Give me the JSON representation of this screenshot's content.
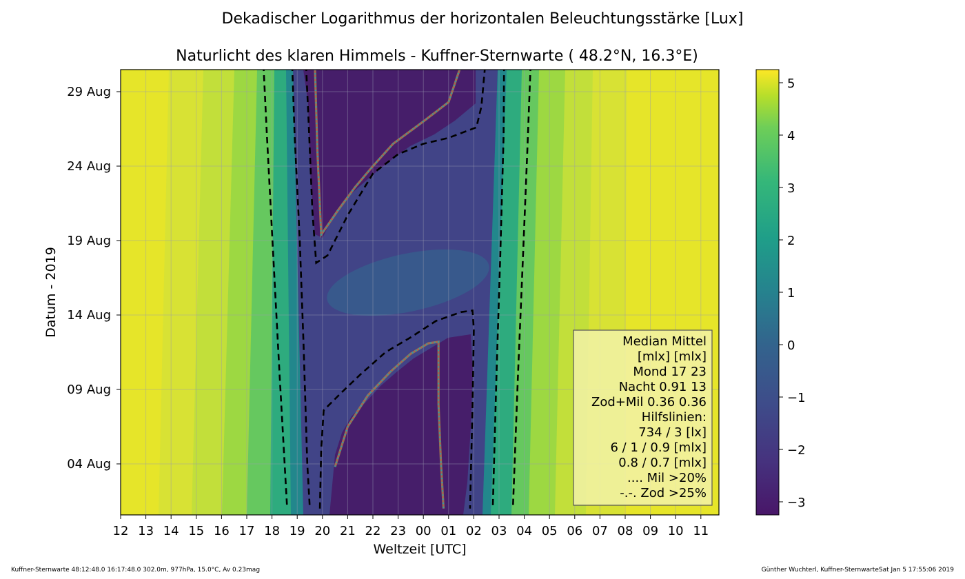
{
  "chart_data": {
    "type": "heatmap",
    "title": "Dekadischer Logarithmus der horizontalen Beleuchtungsstärke [Lux]",
    "subtitle": "Naturlicht des klaren Himmels - Kuffner-Sternwarte ( 48.2°N, 16.3°E)",
    "xlabel": "Weltzeit [UTC]",
    "ylabel": "Datum - 2019",
    "x_ticks": [
      "12",
      "13",
      "14",
      "15",
      "16",
      "17",
      "18",
      "19",
      "20",
      "21",
      "22",
      "23",
      "00",
      "01",
      "02",
      "03",
      "04",
      "05",
      "06",
      "07",
      "08",
      "09",
      "10",
      "11"
    ],
    "y_ticks": [
      "29 Aug",
      "24 Aug",
      "19 Aug",
      "14 Aug",
      "09 Aug",
      "04 Aug"
    ],
    "colorbar_ticks": [
      "5",
      "4",
      "3",
      "2",
      "1",
      "0",
      "−1",
      "−2",
      "−3"
    ],
    "colorbar_range": [
      -3.25,
      5.25
    ],
    "grid": true,
    "legend_position": "lower-right",
    "legend_lines": [
      "Median Mittel",
      "[mlx]  [mlx]",
      "Mond   17  23",
      "Nacht 0.91  13",
      "Zod+Mil 0.36  0.36",
      "Hilfslinien:",
      "734 / 3  [lx]",
      "6 /  1 / 0.9 [mlx]",
      "0.8 / 0.7 [mlx]",
      ".... Mil >20%",
      "-.-. Zod >25%"
    ],
    "contour_lines": [
      {
        "style": "dashed",
        "points": [
          [
            "17.66",
            "30.8"
          ],
          [
            "17.8",
            "26"
          ],
          [
            "18.05",
            "18"
          ],
          [
            "18.3",
            "10"
          ],
          [
            "18.6",
            "1"
          ]
        ]
      },
      {
        "style": "dashed",
        "points": [
          [
            "18.8",
            "30.8"
          ],
          [
            "18.9",
            "26"
          ],
          [
            "19.1",
            "19"
          ],
          [
            "19.25",
            "12"
          ],
          [
            "19.4",
            "4"
          ],
          [
            "19.5",
            "1"
          ]
        ]
      },
      {
        "style": "dashed",
        "points": [
          [
            "27.2",
            "30.8"
          ],
          [
            "27.18",
            "26"
          ],
          [
            "27.05",
            "18"
          ],
          [
            "26.9",
            "10"
          ],
          [
            "26.75",
            "1"
          ]
        ]
      },
      {
        "style": "dashed",
        "points": [
          [
            "28.25",
            "30.8"
          ],
          [
            "28.12",
            "25"
          ],
          [
            "27.95",
            "18"
          ],
          [
            "27.75",
            "10"
          ],
          [
            "27.55",
            "1"
          ]
        ]
      },
      {
        "style": "dashed",
        "points": [
          [
            "19.35",
            "30.8"
          ],
          [
            "19.45",
            "27"
          ],
          [
            "19.6",
            "21"
          ],
          [
            "19.75",
            "17.5"
          ],
          [
            "20.2",
            "18"
          ],
          [
            "21",
            "20.7"
          ],
          [
            "22",
            "23.5"
          ],
          [
            "23",
            "24.8"
          ],
          [
            "24",
            "25.5"
          ],
          [
            "25",
            "25.9"
          ],
          [
            "26.1",
            "26.6"
          ],
          [
            "26.3",
            "28"
          ],
          [
            "26.45",
            "30.8"
          ]
        ]
      },
      {
        "style": "dashed",
        "points": [
          [
            "19.9",
            "1"
          ],
          [
            "19.95",
            "5"
          ],
          [
            "20.05",
            "7.6"
          ],
          [
            "20.7",
            "8.7"
          ],
          [
            "21.5",
            "10"
          ],
          [
            "22.5",
            "11.5"
          ],
          [
            "23.5",
            "12.5"
          ],
          [
            "24.5",
            "13.6"
          ],
          [
            "25.5",
            "14.2"
          ],
          [
            "25.95",
            "14.3"
          ],
          [
            "26",
            "13"
          ],
          [
            "25.95",
            "8"
          ],
          [
            "25.85",
            "1"
          ]
        ]
      }
    ],
    "moonset_curve": {
      "points": [
        [
          "19.7",
          "30.8"
        ],
        [
          "19.8",
          "25"
        ],
        [
          "19.95",
          "19.4"
        ],
        [
          "20.6",
          "21"
        ],
        [
          "21.3",
          "22.6"
        ],
        [
          "22",
          "24"
        ],
        [
          "22.8",
          "25.5"
        ],
        [
          "24",
          "27"
        ],
        [
          "25",
          "28.3"
        ],
        [
          "25.5",
          "30.8"
        ]
      ]
    },
    "moonrise_curve": {
      "points": [
        [
          "20.5",
          "3.8"
        ],
        [
          "21",
          "6.5"
        ],
        [
          "21.8",
          "8.6"
        ],
        [
          "22.7",
          "10.2"
        ],
        [
          "23.5",
          "11.4"
        ],
        [
          "24.2",
          "12.1"
        ],
        [
          "24.6",
          "12.2"
        ],
        [
          "24.6",
          "8"
        ],
        [
          "24.7",
          "4"
        ],
        [
          "24.8",
          "1"
        ]
      ]
    }
  },
  "footer": {
    "left": "Kuffner-Sternwarte 48:12:48.0 16:17:48.0 302.0m,  977hPa, 15.0°C, Av 0.23mag",
    "right": "Günther Wuchterl, Kuffner-SternwarteSat Jan  5 17:55:06 2019"
  }
}
